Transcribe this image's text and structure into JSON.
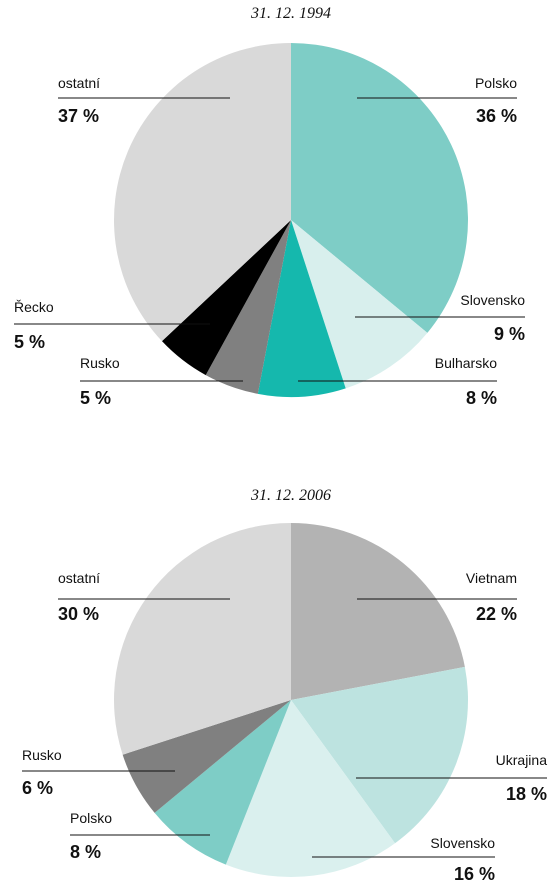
{
  "chart_data": [
    {
      "type": "pie",
      "title": "31. 12. 1994",
      "categories": [
        "Polsko",
        "Slovensko",
        "Bulharsko",
        "Rusko",
        "Řecko",
        "ostatní"
      ],
      "values": [
        36,
        9,
        8,
        5,
        5,
        37
      ],
      "value_labels": [
        "36 %",
        "9 %",
        "8 %",
        "5 %",
        "5 %",
        "37 %"
      ],
      "colors": [
        "#7ecdc6",
        "#d8efed",
        "#15b8ad",
        "#808080",
        "#000000",
        "#d9d9d9"
      ]
    },
    {
      "type": "pie",
      "title": "31. 12. 2006",
      "categories": [
        "Vietnam",
        "Ukrajina",
        "Slovensko",
        "Polsko",
        "Rusko",
        "ostatní"
      ],
      "values": [
        22,
        18,
        16,
        8,
        6,
        30
      ],
      "value_labels": [
        "22 %",
        "18 %",
        "16 %",
        "8 %",
        "6 %",
        "30 %"
      ],
      "colors": [
        "#b3b3b3",
        "#bde3e0",
        "#daf0ee",
        "#7ecdc6",
        "#808080",
        "#d9d9d9"
      ]
    }
  ]
}
